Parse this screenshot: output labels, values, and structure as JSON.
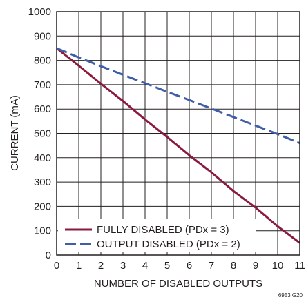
{
  "chart_data": {
    "type": "line",
    "title": "",
    "xlabel": "NUMBER OF DISABLED OUTPUTS",
    "ylabel": "CURRENT (mA)",
    "xlim": [
      0,
      11
    ],
    "ylim": [
      0,
      1000
    ],
    "x_ticks": [
      "0",
      "1",
      "2",
      "3",
      "4",
      "5",
      "6",
      "7",
      "8",
      "9",
      "10",
      "11"
    ],
    "y_ticks": [
      "0",
      "100",
      "200",
      "300",
      "400",
      "500",
      "600",
      "700",
      "800",
      "900",
      "1000"
    ],
    "grid": true,
    "legend_position": "bottom-left",
    "series": [
      {
        "name": "FULLY DISABLED (PDx = 3)",
        "color": "#8b1a3c",
        "dash": "solid",
        "x": [
          0,
          1,
          2,
          3,
          4,
          5,
          6,
          7,
          8,
          9,
          10,
          11
        ],
        "y": [
          850,
          778,
          704,
          633,
          557,
          485,
          410,
          340,
          263,
          195,
          118,
          50
        ]
      },
      {
        "name": "OUTPUT DISABLED (PDx = 2)",
        "color": "#3f5ea8",
        "dash": "dashed",
        "x": [
          0,
          1,
          2,
          3,
          4,
          5,
          6,
          7,
          8,
          9,
          10,
          11
        ],
        "y": [
          850,
          812,
          776,
          741,
          706,
          671,
          637,
          602,
          567,
          532,
          497,
          460
        ]
      }
    ],
    "figure_id": "6953 G20"
  }
}
